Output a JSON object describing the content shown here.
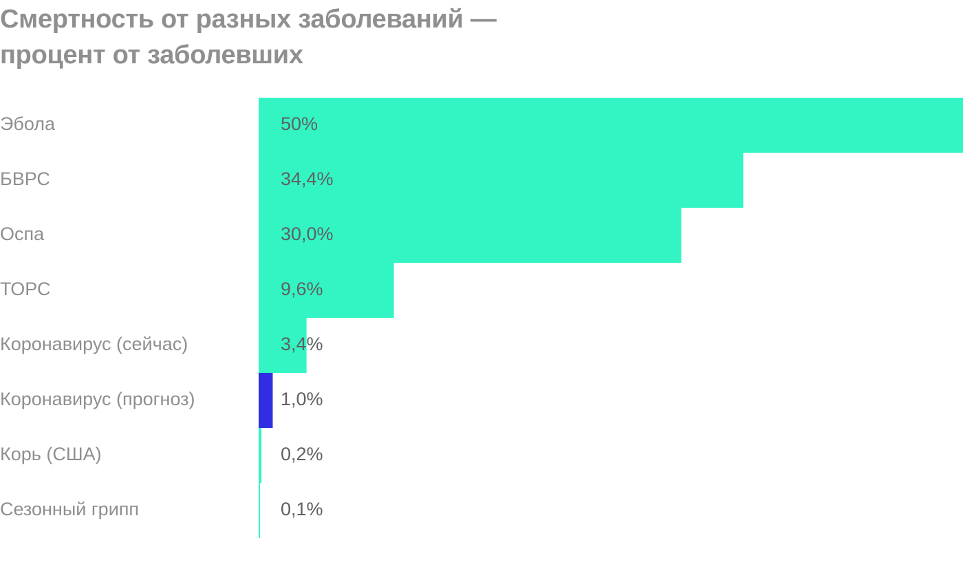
{
  "chart_data": {
    "type": "bar",
    "orientation": "horizontal",
    "title": "Смертность от разных заболеваний — процент от заболевших",
    "title_lines": [
      "Смертность от разных заболеваний —",
      "процент от заболевших"
    ],
    "xlabel": "",
    "ylabel": "",
    "xlim": [
      0,
      50
    ],
    "grid": false,
    "categories": [
      "Эбола",
      "БВРС",
      "Оспа",
      "ТОРС",
      "Коронавирус (сейчас)",
      "Коронавирус (прогноз)",
      "Корь (США)",
      "Сезонный грипп"
    ],
    "values": [
      50,
      34.4,
      30.0,
      9.6,
      3.4,
      1.0,
      0.2,
      0.1
    ],
    "value_labels": [
      "50%",
      "34,4%",
      "30,0%",
      "9,6%",
      "3,4%",
      "1,0%",
      "0,2%",
      "0,1%"
    ],
    "colors": [
      "#33f5c4",
      "#33f5c4",
      "#33f5c4",
      "#33f5c4",
      "#33f5c4",
      "#2f2ee3",
      "#33f5c4",
      "#33f5c4"
    ]
  }
}
